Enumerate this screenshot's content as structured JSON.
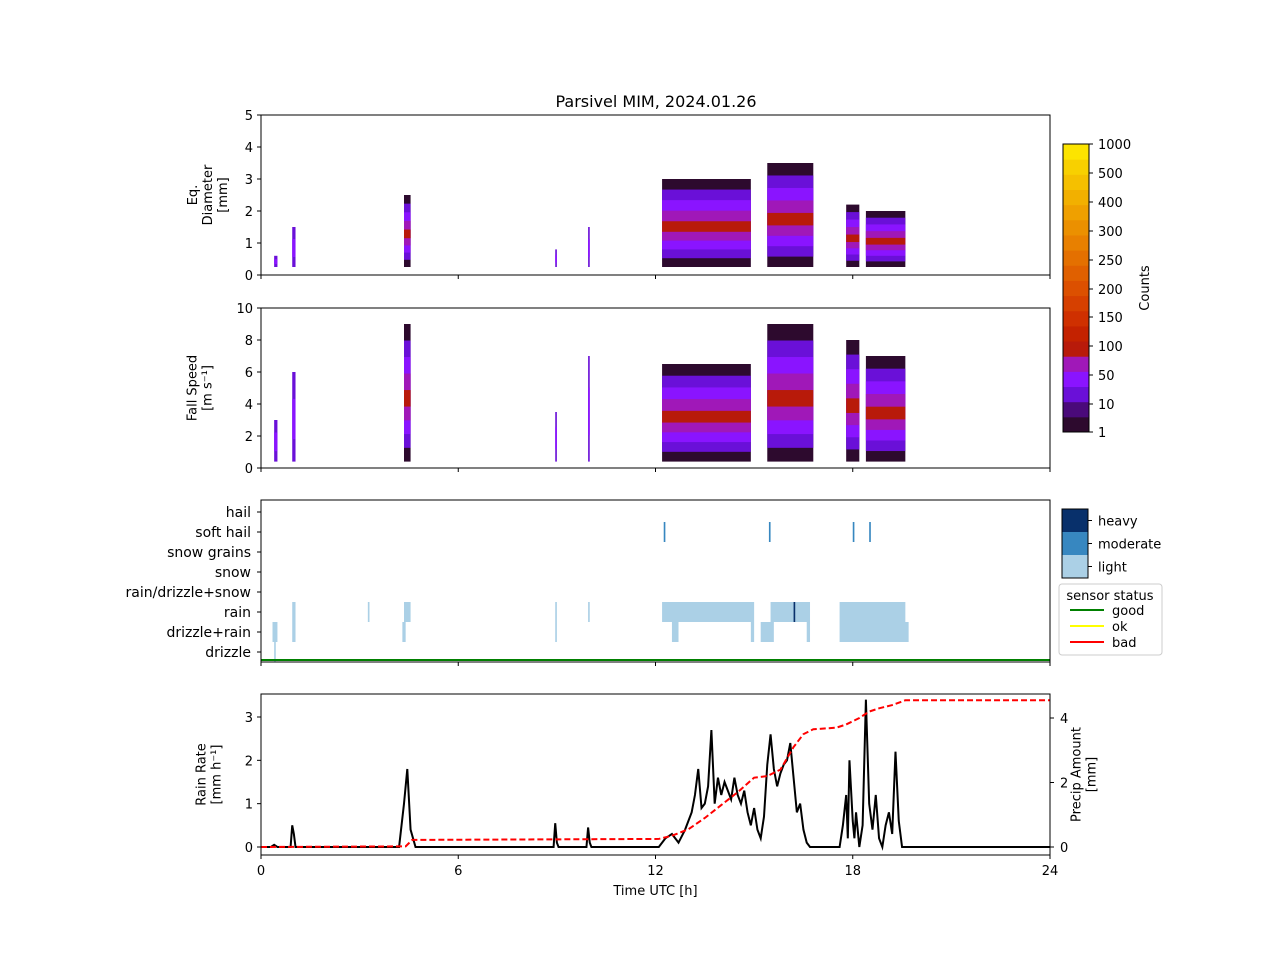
{
  "title": "Parsivel MIM, 2024.01.26",
  "xaxis": {
    "label": "Time UTC [h]",
    "ticks": [
      0,
      6,
      12,
      18,
      24
    ],
    "tick_labels": [
      "0",
      "6",
      "12",
      "18",
      "24"
    ],
    "range": [
      0,
      24
    ]
  },
  "colorbar_counts": {
    "label": "Counts",
    "tick_labels": [
      "1000",
      "500",
      "400",
      "300",
      "250",
      "200",
      "150",
      "100",
      "50",
      "10",
      "1"
    ],
    "colors": [
      "#2d0a2e",
      "#4a0a7a",
      "#6a10d8",
      "#8a14ff",
      "#a018b8",
      "#b81a0a",
      "#c42200",
      "#cf3000",
      "#d64000",
      "#dc5000",
      "#e06000",
      "#e47000",
      "#e88000",
      "#eb9000",
      "#efa000",
      "#f2b000",
      "#f5c000",
      "#f8d000",
      "#fce400"
    ]
  },
  "colorbar_intensity": {
    "labels": [
      "heavy",
      "moderate",
      "light"
    ],
    "colors": [
      "#08306b",
      "#3787c0",
      "#abd0e6"
    ]
  },
  "sensor_legend": {
    "title": "sensor status",
    "items": [
      {
        "label": "good",
        "color": "#008000"
      },
      {
        "label": "ok",
        "color": "#ffff00"
      },
      {
        "label": "bad",
        "color": "#ff0000"
      }
    ]
  },
  "chart_data": [
    {
      "type": "heatmap",
      "ylabel_lines": [
        "Eq.",
        "Diameter",
        "[mm]"
      ],
      "ylim": [
        0,
        5
      ],
      "yticks": [
        0,
        1,
        2,
        3,
        4,
        5
      ],
      "events": [
        {
          "start": 0.4,
          "end": 0.5,
          "ymax": 0.6,
          "level": "mid"
        },
        {
          "start": 0.95,
          "end": 1.05,
          "ymax": 1.5,
          "level": "mid"
        },
        {
          "start": 4.35,
          "end": 4.55,
          "ymax": 2.5,
          "level": "high"
        },
        {
          "start": 8.95,
          "end": 9.0,
          "ymax": 0.8,
          "level": "mid"
        },
        {
          "start": 9.95,
          "end": 10.0,
          "ymax": 1.5,
          "level": "mid"
        },
        {
          "start": 12.2,
          "end": 14.9,
          "ymax": 3.0,
          "level": "high"
        },
        {
          "start": 15.4,
          "end": 16.8,
          "ymax": 3.5,
          "level": "high"
        },
        {
          "start": 17.8,
          "end": 18.2,
          "ymax": 2.2,
          "level": "high"
        },
        {
          "start": 18.4,
          "end": 19.6,
          "ymax": 2.0,
          "level": "high"
        }
      ]
    },
    {
      "type": "heatmap",
      "ylabel_lines": [
        "Fall Speed",
        "[m s⁻¹]"
      ],
      "ylim": [
        0,
        10
      ],
      "yticks": [
        0,
        2,
        4,
        6,
        8,
        10
      ],
      "events": [
        {
          "start": 0.4,
          "end": 0.5,
          "ymax": 3.0,
          "level": "mid"
        },
        {
          "start": 0.95,
          "end": 1.05,
          "ymax": 6.0,
          "level": "mid"
        },
        {
          "start": 4.35,
          "end": 4.55,
          "ymax": 9.0,
          "level": "high"
        },
        {
          "start": 8.95,
          "end": 9.0,
          "ymax": 3.5,
          "level": "mid"
        },
        {
          "start": 9.95,
          "end": 10.0,
          "ymax": 7.0,
          "level": "mid"
        },
        {
          "start": 12.2,
          "end": 14.9,
          "ymax": 6.5,
          "level": "high"
        },
        {
          "start": 15.4,
          "end": 16.8,
          "ymax": 9.0,
          "level": "high"
        },
        {
          "start": 17.8,
          "end": 18.2,
          "ymax": 8.0,
          "level": "high"
        },
        {
          "start": 18.4,
          "end": 19.6,
          "ymax": 7.0,
          "level": "high"
        }
      ]
    },
    {
      "type": "heatmap",
      "categories": [
        "drizzle",
        "drizzle+rain",
        "rain",
        "rain/drizzle+snow",
        "snow",
        "snow grains",
        "soft hail",
        "hail"
      ],
      "segments": [
        {
          "cat": "soft hail",
          "start": 12.25,
          "end": 12.3,
          "level": "moderate"
        },
        {
          "cat": "soft hail",
          "start": 15.45,
          "end": 15.5,
          "level": "moderate"
        },
        {
          "cat": "soft hail",
          "start": 18.0,
          "end": 18.05,
          "level": "moderate"
        },
        {
          "cat": "soft hail",
          "start": 18.5,
          "end": 18.55,
          "level": "moderate"
        },
        {
          "cat": "rain",
          "start": 0.95,
          "end": 1.05,
          "level": "light"
        },
        {
          "cat": "rain",
          "start": 3.25,
          "end": 3.3,
          "level": "light"
        },
        {
          "cat": "rain",
          "start": 4.35,
          "end": 4.55,
          "level": "light"
        },
        {
          "cat": "rain",
          "start": 8.95,
          "end": 9.0,
          "level": "light"
        },
        {
          "cat": "rain",
          "start": 9.95,
          "end": 10.0,
          "level": "light"
        },
        {
          "cat": "rain",
          "start": 12.2,
          "end": 15.0,
          "level": "light"
        },
        {
          "cat": "rain",
          "start": 15.5,
          "end": 16.7,
          "level": "light"
        },
        {
          "cat": "rain",
          "start": 16.2,
          "end": 16.25,
          "level": "heavy"
        },
        {
          "cat": "rain",
          "start": 17.6,
          "end": 19.6,
          "level": "light"
        },
        {
          "cat": "drizzle+rain",
          "start": 0.35,
          "end": 0.5,
          "level": "light"
        },
        {
          "cat": "drizzle+rain",
          "start": 0.95,
          "end": 1.05,
          "level": "light"
        },
        {
          "cat": "drizzle+rain",
          "start": 4.3,
          "end": 4.4,
          "level": "light"
        },
        {
          "cat": "drizzle+rain",
          "start": 8.95,
          "end": 9.0,
          "level": "light"
        },
        {
          "cat": "drizzle+rain",
          "start": 12.5,
          "end": 12.7,
          "level": "light"
        },
        {
          "cat": "drizzle+rain",
          "start": 14.9,
          "end": 15.0,
          "level": "light"
        },
        {
          "cat": "drizzle+rain",
          "start": 15.2,
          "end": 15.6,
          "level": "light"
        },
        {
          "cat": "drizzle+rain",
          "start": 16.6,
          "end": 16.7,
          "level": "light"
        },
        {
          "cat": "drizzle+rain",
          "start": 17.6,
          "end": 19.7,
          "level": "light"
        },
        {
          "cat": "drizzle",
          "start": 0.4,
          "end": 0.45,
          "level": "light"
        }
      ],
      "sensor_status": "good"
    },
    {
      "type": "line",
      "ylabel_lines": [
        "Rain Rate",
        "[mm h⁻¹]"
      ],
      "ylim": [
        0,
        3.5
      ],
      "yticks": [
        0,
        1,
        2,
        3
      ],
      "y2label_lines": [
        "Precip Amount",
        "[mm]"
      ],
      "y2lim": [
        0,
        4.7
      ],
      "y2ticks": [
        0,
        2,
        4
      ],
      "series": [
        {
          "name": "Rain Rate",
          "color": "#000000",
          "style": "solid",
          "x": [
            0,
            0.3,
            0.4,
            0.5,
            0.9,
            0.95,
            1.0,
            1.05,
            1.1,
            4.2,
            4.35,
            4.45,
            4.55,
            4.7,
            8.9,
            8.95,
            9.0,
            9.05,
            9.9,
            9.95,
            10.0,
            10.05,
            12.1,
            12.3,
            12.5,
            12.7,
            12.9,
            13.1,
            13.2,
            13.3,
            13.4,
            13.5,
            13.6,
            13.7,
            13.8,
            13.9,
            14.0,
            14.1,
            14.2,
            14.3,
            14.4,
            14.5,
            14.6,
            14.7,
            14.8,
            14.9,
            15.0,
            15.1,
            15.2,
            15.3,
            15.4,
            15.5,
            15.6,
            15.7,
            15.8,
            15.9,
            16.0,
            16.1,
            16.2,
            16.3,
            16.4,
            16.5,
            16.6,
            16.7,
            16.8,
            17.6,
            17.7,
            17.8,
            17.85,
            17.9,
            18.0,
            18.05,
            18.1,
            18.2,
            18.3,
            18.4,
            18.5,
            18.6,
            18.7,
            18.8,
            18.9,
            19.0,
            19.1,
            19.2,
            19.3,
            19.4,
            19.5,
            19.6,
            19.7,
            24
          ],
          "y": [
            0,
            0,
            0.05,
            0,
            0,
            0.5,
            0.3,
            0,
            0,
            0,
            1.0,
            1.8,
            0.4,
            0,
            0,
            0.55,
            0.1,
            0,
            0,
            0.45,
            0.1,
            0,
            0,
            0.2,
            0.3,
            0.1,
            0.4,
            0.8,
            1.2,
            1.8,
            0.9,
            1.0,
            1.4,
            2.7,
            1.0,
            1.6,
            1.2,
            1.5,
            1.3,
            1.1,
            1.6,
            1.2,
            1.0,
            1.3,
            0.8,
            0.5,
            0.9,
            0.4,
            0.2,
            0.7,
            1.9,
            2.6,
            1.8,
            1.4,
            1.7,
            1.9,
            2.0,
            2.4,
            1.6,
            0.8,
            1.0,
            0.4,
            0.1,
            0,
            0,
            0,
            0.5,
            1.2,
            0.2,
            2.0,
            0.6,
            0.2,
            0.8,
            0,
            0.5,
            3.4,
            1.0,
            0.4,
            1.2,
            0.2,
            0,
            0.5,
            0.8,
            0.3,
            2.2,
            0.6,
            0,
            0,
            0,
            0
          ]
        },
        {
          "name": "Precip Amount",
          "axis": "right",
          "color": "#ff0000",
          "style": "dashed",
          "x": [
            0,
            4.4,
            4.6,
            12.1,
            12.5,
            13.0,
            13.5,
            14.0,
            14.5,
            15.0,
            15.4,
            15.8,
            16.2,
            16.5,
            16.8,
            17.5,
            17.8,
            18.0,
            18.2,
            18.5,
            18.8,
            19.2,
            19.6,
            24
          ],
          "y": [
            0,
            0.02,
            0.22,
            0.25,
            0.35,
            0.55,
            0.9,
            1.3,
            1.7,
            2.15,
            2.2,
            2.4,
            3.1,
            3.5,
            3.65,
            3.7,
            3.8,
            3.9,
            4.0,
            4.2,
            4.3,
            4.4,
            4.55,
            4.55
          ]
        }
      ]
    }
  ]
}
